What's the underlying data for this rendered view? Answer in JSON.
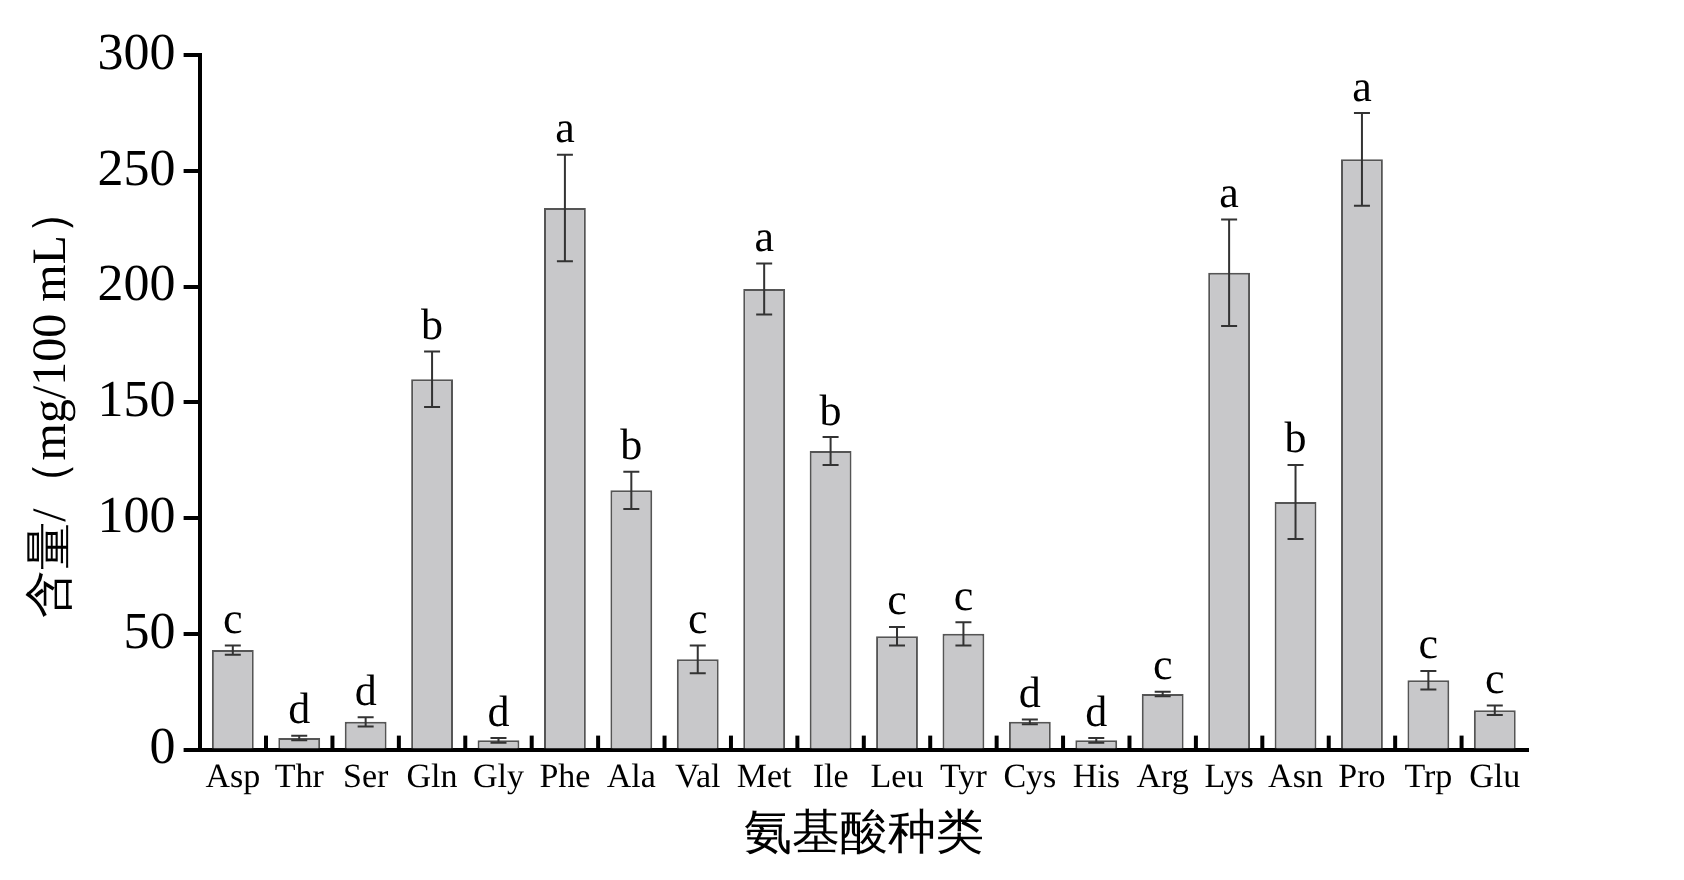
{
  "chart_data": {
    "type": "bar",
    "xlabel": "氨基酸种类",
    "ylabel": "含量/（mg/100 mL）",
    "categories": [
      "Asp",
      "Thr",
      "Ser",
      "Gln",
      "Gly",
      "Phe",
      "Ala",
      "Val",
      "Met",
      "Ile",
      "Leu",
      "Tyr",
      "Cys",
      "His",
      "Arg",
      "Lys",
      "Asn",
      "Pro",
      "Trp",
      "Glu"
    ],
    "values": [
      43,
      5,
      12,
      160,
      4,
      234,
      112,
      39,
      199,
      129,
      49,
      50,
      12,
      4,
      24,
      206,
      107,
      255,
      30,
      17
    ],
    "errors": [
      2,
      1,
      2,
      12,
      1,
      23,
      8,
      6,
      11,
      6,
      4,
      5,
      1,
      1,
      1,
      23,
      16,
      20,
      4,
      2
    ],
    "color": "#c8c8ca",
    "ylim": [
      0,
      300
    ],
    "yticks": [
      0,
      50,
      100,
      150,
      200,
      250,
      300
    ],
    "grid": false,
    "legend": false,
    "annotations": [
      {
        "text": "c",
        "x": "Asp",
        "y": 45
      },
      {
        "text": "d",
        "x": "Thr",
        "y": 6
      },
      {
        "text": "d",
        "x": "Ser",
        "y": 14
      },
      {
        "text": "b",
        "x": "Gln",
        "y": 172
      },
      {
        "text": "d",
        "x": "Gly",
        "y": 5
      },
      {
        "text": "a",
        "x": "Phe",
        "y": 257
      },
      {
        "text": "b",
        "x": "Ala",
        "y": 120
      },
      {
        "text": "c",
        "x": "Val",
        "y": 45
      },
      {
        "text": "a",
        "x": "Met",
        "y": 210
      },
      {
        "text": "b",
        "x": "Ile",
        "y": 135
      },
      {
        "text": "c",
        "x": "Leu",
        "y": 53
      },
      {
        "text": "c",
        "x": "Tyr",
        "y": 55
      },
      {
        "text": "d",
        "x": "Cys",
        "y": 13
      },
      {
        "text": "d",
        "x": "His",
        "y": 5
      },
      {
        "text": "c",
        "x": "Arg",
        "y": 25
      },
      {
        "text": "a",
        "x": "Lys",
        "y": 229
      },
      {
        "text": "b",
        "x": "Asn",
        "y": 123
      },
      {
        "text": "a",
        "x": "Pro",
        "y": 275
      },
      {
        "text": "c",
        "x": "Trp",
        "y": 34
      },
      {
        "text": "c",
        "x": "Glu",
        "y": 19
      }
    ]
  }
}
